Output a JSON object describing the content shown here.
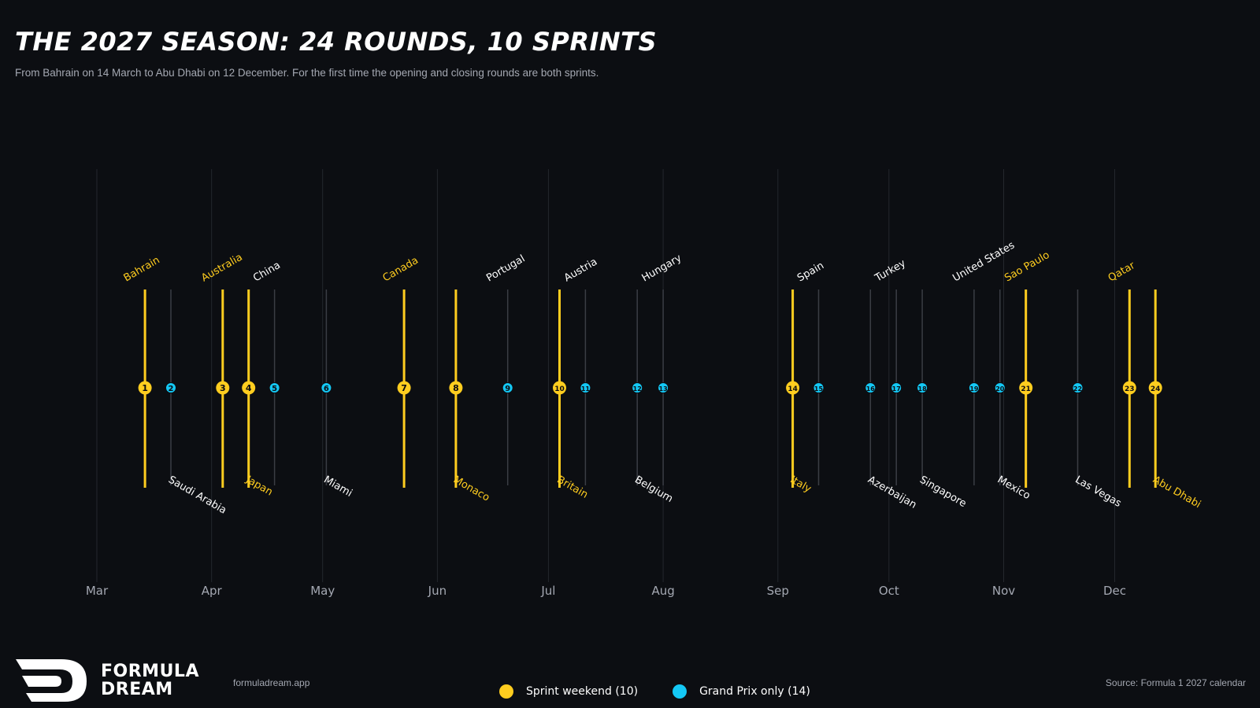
{
  "header": {
    "title": "THE 2027 SEASON: 24 ROUNDS, 10 SPRINTS",
    "subtitle": "From Bahrain on 14 March to Abu Dhabi on 12 December. For the first time the opening and closing rounds are both sprints."
  },
  "footer": {
    "brand_line1": "FORMULA",
    "brand_line2": "DREAM",
    "site": "formuladream.app",
    "source": "Source: Formula 1 2027 calendar"
  },
  "legend": {
    "sprint_label": "Sprint weekend (10)",
    "gp_label": "Grand Prix only (14)"
  },
  "colors": {
    "background": "#0c0e12",
    "sprint": "#ffcd1f",
    "gp": "#14c8f5",
    "gp_line": "#3a3d44",
    "grid": "#24272d",
    "muted_text": "#a4a8b2"
  },
  "chart_data": {
    "type": "timeline",
    "title": "THE 2027 SEASON: 24 ROUNDS, 10 SPRINTS",
    "x_axis": {
      "type": "date",
      "range": [
        "2027-03-01",
        "2027-12-31"
      ],
      "tick_labels": [
        {
          "date": "2027-03-01",
          "label": "Mar"
        },
        {
          "date": "2027-04-01",
          "label": "Apr"
        },
        {
          "date": "2027-05-01",
          "label": "May"
        },
        {
          "date": "2027-06-01",
          "label": "Jun"
        },
        {
          "date": "2027-07-01",
          "label": "Jul"
        },
        {
          "date": "2027-08-01",
          "label": "Aug"
        },
        {
          "date": "2027-09-01",
          "label": "Sep"
        },
        {
          "date": "2027-10-01",
          "label": "Oct"
        },
        {
          "date": "2027-11-01",
          "label": "Nov"
        },
        {
          "date": "2027-12-01",
          "label": "Dec"
        }
      ]
    },
    "grid": true,
    "legend_position": "bottom-center",
    "series": [
      {
        "name": "Sprint weekend (10)",
        "type": "sprint"
      },
      {
        "name": "Grand Prix only (14)",
        "type": "gp"
      }
    ],
    "rounds": [
      {
        "round": 1,
        "name": "Bahrain",
        "date": "2027-03-14",
        "sprint": true
      },
      {
        "round": 2,
        "name": "Saudi Arabia",
        "date": "2027-03-21",
        "sprint": false
      },
      {
        "round": 3,
        "name": "Australia",
        "date": "2027-04-04",
        "sprint": true
      },
      {
        "round": 4,
        "name": "Japan",
        "date": "2027-04-11",
        "sprint": true
      },
      {
        "round": 5,
        "name": "China",
        "date": "2027-04-18",
        "sprint": false
      },
      {
        "round": 6,
        "name": "Miami",
        "date": "2027-05-02",
        "sprint": false
      },
      {
        "round": 7,
        "name": "Canada",
        "date": "2027-05-23",
        "sprint": true
      },
      {
        "round": 8,
        "name": "Monaco",
        "date": "2027-06-06",
        "sprint": true
      },
      {
        "round": 9,
        "name": "Portugal",
        "date": "2027-06-20",
        "sprint": false
      },
      {
        "round": 10,
        "name": "Britain",
        "date": "2027-07-04",
        "sprint": true
      },
      {
        "round": 11,
        "name": "Austria",
        "date": "2027-07-11",
        "sprint": false
      },
      {
        "round": 12,
        "name": "Belgium",
        "date": "2027-07-25",
        "sprint": false
      },
      {
        "round": 13,
        "name": "Hungary",
        "date": "2027-08-01",
        "sprint": false
      },
      {
        "round": 14,
        "name": "Italy",
        "date": "2027-09-05",
        "sprint": true
      },
      {
        "round": 15,
        "name": "Spain",
        "date": "2027-09-12",
        "sprint": false
      },
      {
        "round": 16,
        "name": "Azerbaijan",
        "date": "2027-09-26",
        "sprint": false
      },
      {
        "round": 17,
        "name": "Turkey",
        "date": "2027-10-03",
        "sprint": false
      },
      {
        "round": 18,
        "name": "Singapore",
        "date": "2027-10-10",
        "sprint": false
      },
      {
        "round": 19,
        "name": "United States",
        "date": "2027-10-24",
        "sprint": false
      },
      {
        "round": 20,
        "name": "Mexico",
        "date": "2027-10-31",
        "sprint": false
      },
      {
        "round": 21,
        "name": "Sao Paulo",
        "date": "2027-11-07",
        "sprint": true
      },
      {
        "round": 22,
        "name": "Las Vegas",
        "date": "2027-11-21",
        "sprint": false
      },
      {
        "round": 23,
        "name": "Qatar",
        "date": "2027-12-05",
        "sprint": true
      },
      {
        "round": 24,
        "name": "Abu Dhabi",
        "date": "2027-12-12",
        "sprint": true
      }
    ]
  }
}
